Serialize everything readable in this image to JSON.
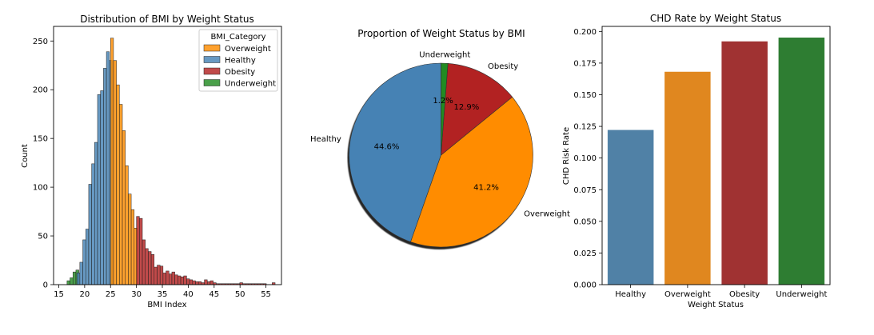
{
  "palette": {
    "Overweight": "#ff8c00",
    "Healthy": "#4682b4",
    "Obesity": "#b22222",
    "Underweight": "#228b22"
  },
  "chart_data": [
    {
      "type": "histogram",
      "title": "Distribution of BMI by Weight Status",
      "xlabel": "BMI Index",
      "ylabel": "Count",
      "xlim": [
        14,
        58
      ],
      "ylim": [
        0,
        265
      ],
      "xticks": [
        15,
        20,
        25,
        30,
        35,
        40,
        45,
        50,
        55
      ],
      "yticks": [
        0,
        50,
        100,
        150,
        200,
        250
      ],
      "legend": {
        "title": "BMI_Category",
        "placement": "upper right",
        "entries": [
          "Overweight",
          "Healthy",
          "Obesity",
          "Underweight"
        ]
      },
      "bin_width": 0.57,
      "bins": [
        {
          "start": 16.6,
          "count": 4,
          "category": "Underweight"
        },
        {
          "start": 17.17,
          "count": 7,
          "category": "Underweight"
        },
        {
          "start": 17.74,
          "count": 13,
          "category": "Underweight"
        },
        {
          "start": 18.31,
          "count": 15,
          "category": "Underweight"
        },
        {
          "start": 18.5,
          "count": 12,
          "category": "Healthy"
        },
        {
          "start": 19.07,
          "count": 23,
          "category": "Healthy"
        },
        {
          "start": 19.64,
          "count": 46,
          "category": "Healthy"
        },
        {
          "start": 20.21,
          "count": 57,
          "category": "Healthy"
        },
        {
          "start": 20.78,
          "count": 103,
          "category": "Healthy"
        },
        {
          "start": 21.35,
          "count": 124,
          "category": "Healthy"
        },
        {
          "start": 21.92,
          "count": 146,
          "category": "Healthy"
        },
        {
          "start": 22.49,
          "count": 195,
          "category": "Healthy"
        },
        {
          "start": 23.06,
          "count": 199,
          "category": "Healthy"
        },
        {
          "start": 23.63,
          "count": 222,
          "category": "Healthy"
        },
        {
          "start": 24.2,
          "count": 239,
          "category": "Healthy"
        },
        {
          "start": 24.77,
          "count": 230,
          "category": "Healthy"
        },
        {
          "start": 25.0,
          "count": 253,
          "category": "Overweight"
        },
        {
          "start": 25.57,
          "count": 230,
          "category": "Overweight"
        },
        {
          "start": 26.14,
          "count": 205,
          "category": "Overweight"
        },
        {
          "start": 26.71,
          "count": 185,
          "category": "Overweight"
        },
        {
          "start": 27.28,
          "count": 158,
          "category": "Overweight"
        },
        {
          "start": 27.85,
          "count": 122,
          "category": "Overweight"
        },
        {
          "start": 28.42,
          "count": 93,
          "category": "Overweight"
        },
        {
          "start": 28.99,
          "count": 77,
          "category": "Overweight"
        },
        {
          "start": 29.56,
          "count": 58,
          "category": "Overweight"
        },
        {
          "start": 30.0,
          "count": 70,
          "category": "Obesity"
        },
        {
          "start": 30.57,
          "count": 68,
          "category": "Obesity"
        },
        {
          "start": 31.14,
          "count": 46,
          "category": "Obesity"
        },
        {
          "start": 31.71,
          "count": 37,
          "category": "Obesity"
        },
        {
          "start": 32.28,
          "count": 34,
          "category": "Obesity"
        },
        {
          "start": 32.85,
          "count": 31,
          "category": "Obesity"
        },
        {
          "start": 33.42,
          "count": 18,
          "category": "Obesity"
        },
        {
          "start": 33.99,
          "count": 20,
          "category": "Obesity"
        },
        {
          "start": 34.56,
          "count": 19,
          "category": "Obesity"
        },
        {
          "start": 35.13,
          "count": 12,
          "category": "Obesity"
        },
        {
          "start": 35.7,
          "count": 14,
          "category": "Obesity"
        },
        {
          "start": 36.27,
          "count": 11,
          "category": "Obesity"
        },
        {
          "start": 36.84,
          "count": 13,
          "category": "Obesity"
        },
        {
          "start": 37.41,
          "count": 10,
          "category": "Obesity"
        },
        {
          "start": 37.98,
          "count": 9,
          "category": "Obesity"
        },
        {
          "start": 38.55,
          "count": 8,
          "category": "Obesity"
        },
        {
          "start": 39.12,
          "count": 9,
          "category": "Obesity"
        },
        {
          "start": 39.69,
          "count": 6,
          "category": "Obesity"
        },
        {
          "start": 40.26,
          "count": 5,
          "category": "Obesity"
        },
        {
          "start": 40.83,
          "count": 4,
          "category": "Obesity"
        },
        {
          "start": 41.4,
          "count": 3,
          "category": "Obesity"
        },
        {
          "start": 41.97,
          "count": 3,
          "category": "Obesity"
        },
        {
          "start": 42.54,
          "count": 2,
          "category": "Obesity"
        },
        {
          "start": 43.11,
          "count": 5,
          "category": "Obesity"
        },
        {
          "start": 43.68,
          "count": 3,
          "category": "Obesity"
        },
        {
          "start": 44.25,
          "count": 4,
          "category": "Obesity"
        },
        {
          "start": 44.82,
          "count": 2,
          "category": "Obesity"
        },
        {
          "start": 45.39,
          "count": 1,
          "category": "Obesity"
        },
        {
          "start": 45.96,
          "count": 1,
          "category": "Obesity"
        },
        {
          "start": 46.53,
          "count": 1,
          "category": "Obesity"
        },
        {
          "start": 47.1,
          "count": 1,
          "category": "Obesity"
        },
        {
          "start": 47.67,
          "count": 1,
          "category": "Obesity"
        },
        {
          "start": 48.24,
          "count": 1,
          "category": "Obesity"
        },
        {
          "start": 48.81,
          "count": 1,
          "category": "Obesity"
        },
        {
          "start": 49.38,
          "count": 1,
          "category": "Obesity"
        },
        {
          "start": 49.95,
          "count": 2,
          "category": "Obesity"
        },
        {
          "start": 50.52,
          "count": 1,
          "category": "Obesity"
        },
        {
          "start": 51.09,
          "count": 1,
          "category": "Obesity"
        },
        {
          "start": 51.66,
          "count": 1,
          "category": "Obesity"
        },
        {
          "start": 52.23,
          "count": 1,
          "category": "Obesity"
        },
        {
          "start": 52.8,
          "count": 1,
          "category": "Obesity"
        },
        {
          "start": 53.37,
          "count": 1,
          "category": "Obesity"
        },
        {
          "start": 53.94,
          "count": 1,
          "category": "Obesity"
        },
        {
          "start": 54.51,
          "count": 1,
          "category": "Obesity"
        },
        {
          "start": 56.2,
          "count": 2,
          "category": "Obesity"
        }
      ]
    },
    {
      "type": "pie",
      "title": "Proportion of Weight Status by BMI",
      "shadow": true,
      "slices": [
        {
          "label": "Healthy",
          "value": 44.6,
          "pct_label": "44.6%"
        },
        {
          "label": "Overweight",
          "value": 41.2,
          "pct_label": "41.2%"
        },
        {
          "label": "Obesity",
          "value": 12.9,
          "pct_label": "12.9%"
        },
        {
          "label": "Underweight",
          "value": 1.2,
          "pct_label": "1.2%"
        }
      ]
    },
    {
      "type": "bar",
      "title": "CHD Rate by Weight Status",
      "xlabel": "Weight Status",
      "ylabel": "CHD Risk Rate",
      "ylim": [
        0,
        0.204
      ],
      "yticks": [
        0.0,
        0.025,
        0.05,
        0.075,
        0.1,
        0.125,
        0.15,
        0.175,
        0.2
      ],
      "ytick_labels": [
        "0.000",
        "0.025",
        "0.050",
        "0.075",
        "0.100",
        "0.125",
        "0.150",
        "0.175",
        "0.200"
      ],
      "categories": [
        "Healthy",
        "Overweight",
        "Obesity",
        "Underweight"
      ],
      "values": [
        0.122,
        0.168,
        0.192,
        0.195
      ],
      "colors": [
        "#5081a6",
        "#e0871f",
        "#a03232",
        "#2e7d32"
      ]
    }
  ]
}
